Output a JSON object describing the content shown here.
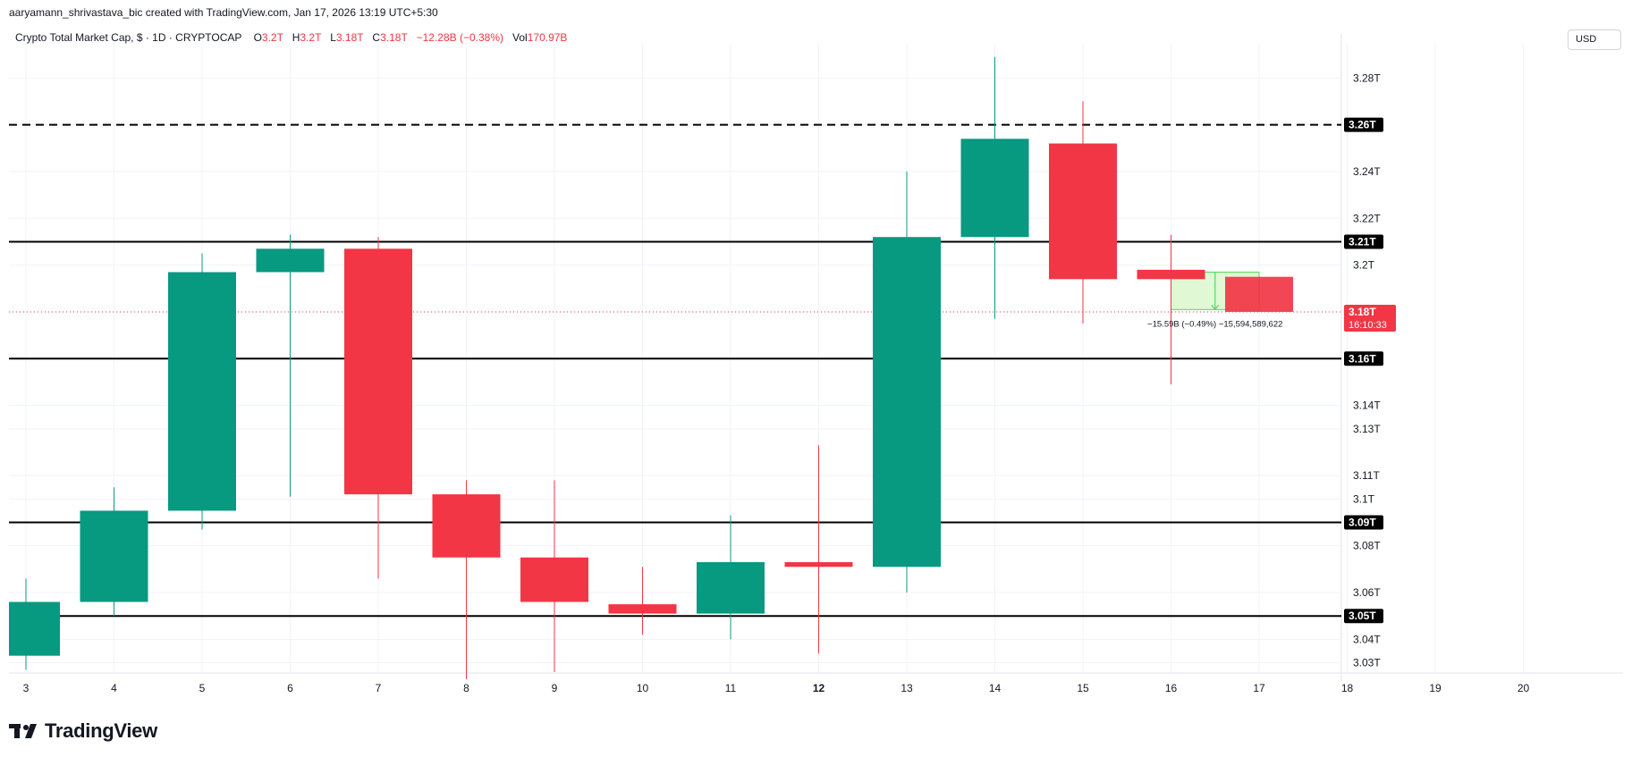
{
  "header": {
    "created_by": "aaryamann_shrivastava_bic created with TradingView.com, Jan 17, 2026 13:19 UTC+5:30"
  },
  "legend": {
    "symbol": "Crypto Total Market Cap, $ · 1D · CRYPTOCAP",
    "o_label": "O",
    "o_value": "3.2T",
    "h_label": "H",
    "h_value": "3.2T",
    "l_label": "L",
    "l_value": "3.18T",
    "c_label": "C",
    "c_value": "3.18T",
    "change": "−12.28B (−0.38%)",
    "vol_label": "Vol",
    "vol_value": "170.97B"
  },
  "currency_button": "USD",
  "brand": {
    "name": "TradingView",
    "icon": "tradingview-logo-icon"
  },
  "colors": {
    "up": "#089981",
    "down": "#f23645",
    "level_line": "#000000",
    "current_price": "#f23645",
    "measure_fill": "#d7f5c6",
    "measure_border": "#58d45c"
  },
  "chart_data": {
    "type": "candlestick",
    "x_tick_labels": [
      "3",
      "4",
      "5",
      "6",
      "7",
      "8",
      "9",
      "10",
      "11",
      "12",
      "13",
      "14",
      "15",
      "16",
      "17",
      "18",
      "19",
      "20"
    ],
    "y_tick_labels": [
      "3.28T",
      "3.26T",
      "3.24T",
      "3.22T",
      "3.2T",
      "3.18T",
      "3.16T",
      "3.14T",
      "3.13T",
      "3.11T",
      "3.1T",
      "3.08T",
      "3.06T",
      "3.04T",
      "3.03T"
    ],
    "ylim": [
      3.026,
      3.295
    ],
    "grid": true,
    "candles": [
      {
        "x": "3",
        "open": 3.033,
        "high": 3.066,
        "low": 3.027,
        "close": 3.056
      },
      {
        "x": "4",
        "open": 3.056,
        "high": 3.105,
        "low": 3.05,
        "close": 3.095
      },
      {
        "x": "5",
        "open": 3.095,
        "high": 3.205,
        "low": 3.087,
        "close": 3.197
      },
      {
        "x": "6",
        "open": 3.197,
        "high": 3.213,
        "low": 3.101,
        "close": 3.207
      },
      {
        "x": "7",
        "open": 3.207,
        "high": 3.212,
        "low": 3.066,
        "close": 3.102
      },
      {
        "x": "8",
        "open": 3.102,
        "high": 3.108,
        "low": 3.023,
        "close": 3.075
      },
      {
        "x": "9",
        "open": 3.075,
        "high": 3.108,
        "low": 3.026,
        "close": 3.056
      },
      {
        "x": "10",
        "open": 3.055,
        "high": 3.071,
        "low": 3.042,
        "close": 3.051
      },
      {
        "x": "11",
        "open": 3.051,
        "high": 3.093,
        "low": 3.04,
        "close": 3.073
      },
      {
        "x": "12",
        "open": 3.073,
        "high": 3.123,
        "low": 3.034,
        "close": 3.071
      },
      {
        "x": "13",
        "open": 3.071,
        "high": 3.24,
        "low": 3.06,
        "close": 3.212
      },
      {
        "x": "14",
        "open": 3.212,
        "high": 3.289,
        "low": 3.177,
        "close": 3.254
      },
      {
        "x": "15",
        "open": 3.252,
        "high": 3.27,
        "low": 3.175,
        "close": 3.194
      },
      {
        "x": "16",
        "open": 3.198,
        "high": 3.213,
        "low": 3.149,
        "close": 3.194
      },
      {
        "x": "17",
        "open": 3.195,
        "high": 3.195,
        "low": 3.18,
        "close": 3.18
      }
    ],
    "levels": [
      {
        "price": 3.26,
        "label": "3.26T",
        "style": "dashed"
      },
      {
        "price": 3.21,
        "label": "3.21T",
        "style": "solid"
      },
      {
        "price": 3.16,
        "label": "3.16T",
        "style": "solid"
      },
      {
        "price": 3.09,
        "label": "3.09T",
        "style": "solid"
      },
      {
        "price": 3.05,
        "label": "3.05T",
        "style": "solid"
      }
    ],
    "current_price": {
      "price": 3.18,
      "label": "3.18T",
      "countdown": "16:10:33"
    },
    "measure": {
      "from_x": "16",
      "to_x": "17",
      "from_price": 3.197,
      "to_price": 3.181,
      "label": "−15.59B (−0.49%) −15,594,589,622"
    }
  }
}
